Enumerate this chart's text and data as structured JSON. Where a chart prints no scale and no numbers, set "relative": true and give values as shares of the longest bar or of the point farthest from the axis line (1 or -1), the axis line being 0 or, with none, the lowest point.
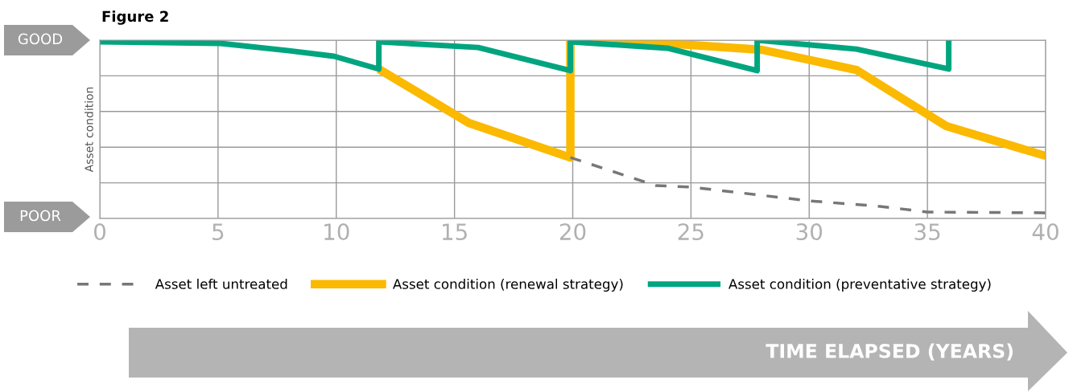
{
  "chart_data": {
    "type": "line",
    "title": "Figure 2",
    "ylabel": "Asset condition",
    "annotations": [
      "GOOD",
      "POOR",
      "TIME ELAPSED (YEARS)"
    ],
    "relative": true,
    "xlim": [
      0,
      40
    ],
    "xticks": [
      0,
      5,
      10,
      15,
      20,
      25,
      30,
      35,
      40
    ],
    "grid": true,
    "legend": "bottom",
    "tick_labels": "x",
    "series": [
      {
        "name": "Asset left untreated",
        "color": "#777777",
        "line_style": "dashed",
        "x": [
          19.9,
          23.5,
          25,
          30,
          33,
          35,
          40
        ],
        "values": [
          0.342,
          0.185,
          0.176,
          0.099,
          0.068,
          0.036,
          0.032
        ]
      },
      {
        "name": "Asset condition (renewal strategy)",
        "color": "#fbb900",
        "line_style": "solid",
        "x": [
          11.8,
          15.6,
          19.9,
          19.9,
          24,
          28,
          32,
          35.8,
          40
        ],
        "values": [
          0.838,
          0.536,
          0.342,
          1.0,
          0.982,
          0.946,
          0.833,
          0.518,
          0.351
        ]
      },
      {
        "name": "Asset condition (preventative strategy)",
        "color": "#00a57f",
        "line_style": "solid",
        "x": [
          0,
          5.1,
          8,
          9.9,
          11.8,
          11.8,
          16,
          19.9,
          19.9,
          24,
          27.8,
          27.8,
          32,
          35.9,
          35.9
        ],
        "values": [
          0.991,
          0.982,
          0.941,
          0.91,
          0.838,
          0.991,
          0.959,
          0.829,
          0.991,
          0.955,
          0.829,
          1.0,
          0.95,
          0.838,
          1.0
        ]
      }
    ]
  }
}
